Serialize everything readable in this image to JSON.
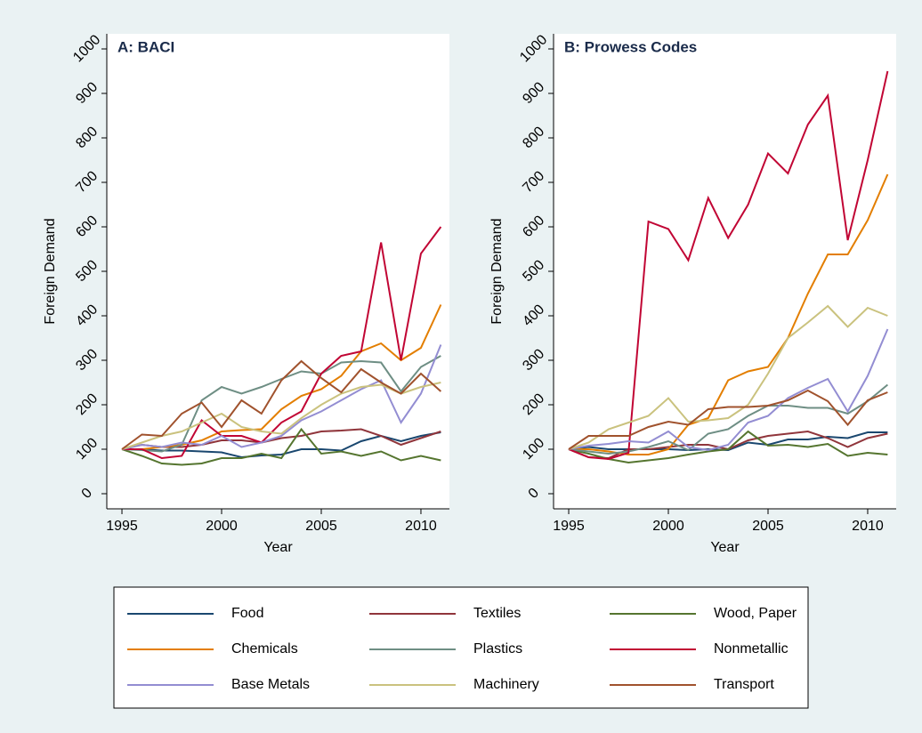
{
  "chart_data": [
    {
      "type": "line",
      "title": "A: BACI",
      "x_label": "Year",
      "y_label": "Foreign Demand",
      "x": [
        1995,
        1996,
        1997,
        1998,
        1999,
        2000,
        2001,
        2002,
        2003,
        2004,
        2005,
        2006,
        2007,
        2008,
        2009,
        2010,
        2011
      ],
      "xlim": [
        1994.24,
        2011.43
      ],
      "ylim": [
        -34,
        1034
      ],
      "xticks": [
        1995,
        2000,
        2005,
        2010
      ],
      "yticks": [
        0,
        100,
        200,
        300,
        400,
        500,
        600,
        700,
        800,
        900,
        1000
      ],
      "series": [
        {
          "name": "Food",
          "color": "#1a476f",
          "values": [
            100,
            100,
            97,
            97,
            95,
            93,
            82,
            86,
            88,
            100,
            100,
            97,
            118,
            130,
            118,
            130,
            138
          ]
        },
        {
          "name": "Textiles",
          "color": "#90353b",
          "values": [
            100,
            110,
            105,
            105,
            110,
            120,
            120,
            115,
            125,
            130,
            140,
            142,
            145,
            130,
            110,
            125,
            140
          ]
        },
        {
          "name": "Wood, Paper",
          "color": "#55752f",
          "values": [
            100,
            85,
            68,
            65,
            68,
            80,
            80,
            90,
            80,
            145,
            90,
            95,
            85,
            95,
            75,
            85,
            75
          ]
        },
        {
          "name": "Chemicals",
          "color": "#e37e00",
          "values": [
            100,
            100,
            105,
            110,
            120,
            140,
            143,
            145,
            190,
            220,
            235,
            265,
            320,
            338,
            300,
            328,
            425
          ]
        },
        {
          "name": "Plastics",
          "color": "#6e8e84",
          "values": [
            100,
            98,
            95,
            110,
            210,
            240,
            225,
            240,
            258,
            275,
            270,
            295,
            298,
            295,
            230,
            285,
            310
          ]
        },
        {
          "name": "Nonmetallic",
          "color": "#c10534",
          "values": [
            100,
            100,
            80,
            85,
            165,
            130,
            130,
            115,
            160,
            185,
            270,
            310,
            320,
            565,
            300,
            540,
            600
          ]
        },
        {
          "name": "Base Metals",
          "color": "#938dd2",
          "values": [
            100,
            110,
            105,
            115,
            110,
            130,
            105,
            115,
            130,
            165,
            185,
            210,
            235,
            255,
            160,
            225,
            335
          ]
        },
        {
          "name": "Machinery",
          "color": "#cac27e",
          "values": [
            100,
            115,
            130,
            140,
            160,
            180,
            150,
            140,
            135,
            170,
            200,
            225,
            240,
            245,
            225,
            240,
            250
          ]
        },
        {
          "name": "Transport",
          "color": "#a0522d",
          "values": [
            100,
            133,
            130,
            180,
            205,
            150,
            210,
            180,
            255,
            298,
            260,
            228,
            280,
            250,
            225,
            270,
            230
          ]
        }
      ]
    },
    {
      "type": "line",
      "title": "B: Prowess Codes",
      "x_label": "Year",
      "y_label": "Foreign Demand",
      "x": [
        1995,
        1996,
        1997,
        1998,
        1999,
        2000,
        2001,
        2002,
        2003,
        2004,
        2005,
        2006,
        2007,
        2008,
        2009,
        2010,
        2011
      ],
      "xlim": [
        1994.24,
        2011.43
      ],
      "ylim": [
        -34,
        1034
      ],
      "xticks": [
        1995,
        2000,
        2005,
        2010
      ],
      "yticks": [
        0,
        100,
        200,
        300,
        400,
        500,
        600,
        700,
        800,
        900,
        1000
      ],
      "series": [
        {
          "name": "Food",
          "color": "#1a476f",
          "values": [
            100,
            105,
            100,
            100,
            100,
            100,
            98,
            100,
            98,
            115,
            110,
            122,
            122,
            128,
            125,
            138,
            138
          ]
        },
        {
          "name": "Textiles",
          "color": "#90353b",
          "values": [
            100,
            82,
            80,
            100,
            100,
            105,
            110,
            110,
            100,
            120,
            130,
            135,
            140,
            125,
            105,
            125,
            135
          ]
        },
        {
          "name": "Wood, Paper",
          "color": "#55752f",
          "values": [
            100,
            90,
            78,
            70,
            75,
            80,
            88,
            95,
            100,
            140,
            108,
            110,
            105,
            112,
            85,
            92,
            88
          ]
        },
        {
          "name": "Chemicals",
          "color": "#e37e00",
          "values": [
            100,
            100,
            95,
            88,
            88,
            100,
            155,
            170,
            255,
            275,
            285,
            350,
            450,
            538,
            538,
            615,
            718
          ]
        },
        {
          "name": "Plastics",
          "color": "#6e8e84",
          "values": [
            100,
            95,
            90,
            95,
            105,
            118,
            98,
            135,
            145,
            175,
            198,
            198,
            193,
            193,
            180,
            208,
            245
          ]
        },
        {
          "name": "Nonmetallic",
          "color": "#c10534",
          "values": [
            100,
            82,
            78,
            92,
            612,
            595,
            525,
            665,
            575,
            650,
            765,
            720,
            830,
            895,
            570,
            750,
            950
          ]
        },
        {
          "name": "Base Metals",
          "color": "#938dd2",
          "values": [
            100,
            108,
            112,
            118,
            115,
            140,
            105,
            98,
            110,
            160,
            175,
            215,
            238,
            258,
            185,
            265,
            370
          ]
        },
        {
          "name": "Machinery",
          "color": "#cac27e",
          "values": [
            100,
            115,
            145,
            160,
            175,
            215,
            162,
            165,
            170,
            200,
            270,
            350,
            385,
            422,
            375,
            418,
            400
          ]
        },
        {
          "name": "Transport",
          "color": "#a0522d",
          "values": [
            100,
            130,
            130,
            130,
            150,
            162,
            155,
            190,
            195,
            195,
            198,
            210,
            232,
            208,
            155,
            210,
            228
          ]
        }
      ]
    }
  ]
}
